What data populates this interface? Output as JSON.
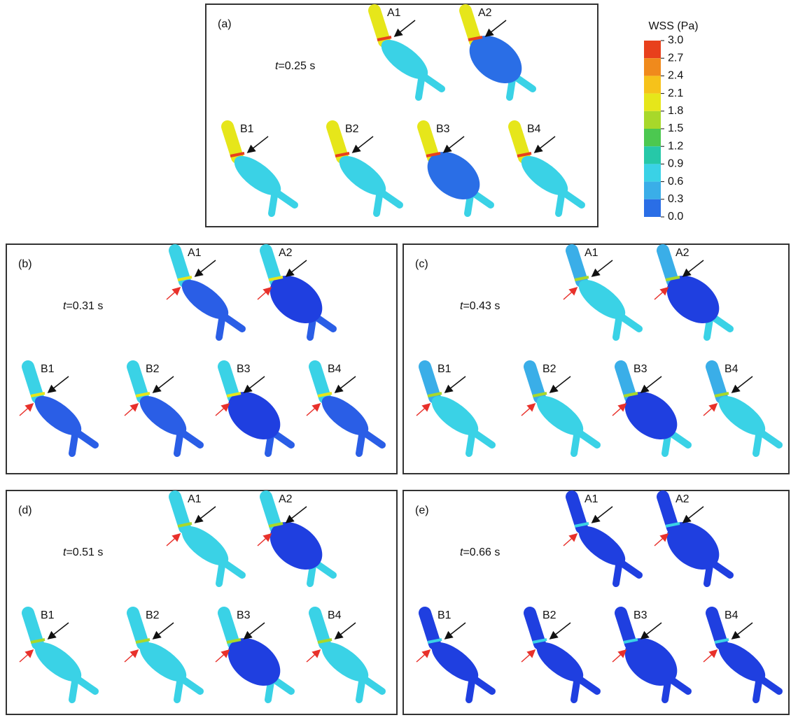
{
  "colorbar": {
    "title": "WSS (Pa)",
    "ticks": [
      {
        "value": 3,
        "label": "3.0"
      },
      {
        "value": 2.7,
        "label": "2.7"
      },
      {
        "value": 2.4,
        "label": "2.4"
      },
      {
        "value": 2.1,
        "label": "2.1"
      },
      {
        "value": 1.8,
        "label": "1.8"
      },
      {
        "value": 1.5,
        "label": "1.5"
      },
      {
        "value": 1.2,
        "label": "1.2"
      },
      {
        "value": 0.9,
        "label": "0.9"
      },
      {
        "value": 0.6,
        "label": "0.6"
      },
      {
        "value": 0.3,
        "label": "0.3"
      },
      {
        "value": 0,
        "label": "0.0"
      }
    ],
    "colors": [
      "#e8401c",
      "#f08a1c",
      "#f6c21a",
      "#e6e61a",
      "#a8d82a",
      "#4cc850",
      "#26c8a8",
      "#3ad2e6",
      "#3aaee8",
      "#2a6ee6"
    ]
  },
  "panels": [
    {
      "label": "(a)",
      "time_var": "t",
      "time": "=0.25 s",
      "models": [
        "A1",
        "A2",
        "B1",
        "B2",
        "B3",
        "B4"
      ]
    },
    {
      "label": "(b)",
      "time_var": "t",
      "time": "=0.31 s",
      "models": [
        "A1",
        "A2",
        "B1",
        "B2",
        "B3",
        "B4"
      ]
    },
    {
      "label": "(c)",
      "time_var": "t",
      "time": "=0.43 s",
      "models": [
        "A1",
        "A2",
        "B1",
        "B2",
        "B3",
        "B4"
      ]
    },
    {
      "label": "(d)",
      "time_var": "t",
      "time": "=0.51 s",
      "models": [
        "A1",
        "A2",
        "B1",
        "B2",
        "B3",
        "B4"
      ]
    },
    {
      "label": "(e)",
      "time_var": "t",
      "time": "=0.66 s",
      "models": [
        "A1",
        "A2",
        "B1",
        "B2",
        "B3",
        "B4"
      ]
    }
  ]
}
